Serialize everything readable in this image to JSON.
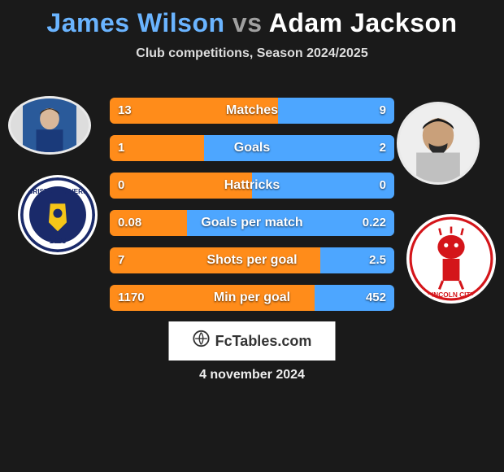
{
  "title": {
    "player1": "James Wilson",
    "vs": "vs",
    "player2": "Adam Jackson"
  },
  "subtitle": "Club competitions, Season 2024/2025",
  "colors": {
    "bar_left": "#ff8c1a",
    "bar_right": "#4da6ff",
    "bar_bg": "#4a4a4a",
    "player1_title": "#6ab4ff",
    "vs_title": "#a0a0a0",
    "player2_title": "#ffffff",
    "background": "#1a1a1a"
  },
  "stats": [
    {
      "label": "Matches",
      "left_val": "13",
      "right_val": "9",
      "left_pct": 59,
      "right_pct": 41
    },
    {
      "label": "Goals",
      "left_val": "1",
      "right_val": "2",
      "left_pct": 33,
      "right_pct": 67
    },
    {
      "label": "Hattricks",
      "left_val": "0",
      "right_val": "0",
      "left_pct": 50,
      "right_pct": 50
    },
    {
      "label": "Goals per match",
      "left_val": "0.08",
      "right_val": "0.22",
      "left_pct": 27,
      "right_pct": 73
    },
    {
      "label": "Shots per goal",
      "left_val": "7",
      "right_val": "2.5",
      "left_pct": 74,
      "right_pct": 26
    },
    {
      "label": "Min per goal",
      "left_val": "1170",
      "right_val": "452",
      "left_pct": 72,
      "right_pct": 28
    }
  ],
  "branding": {
    "text": "FcTables.com"
  },
  "date": "4 november 2024",
  "avatars": {
    "player1_name": "James Wilson",
    "player2_name": "Adam Jackson",
    "club1_name": "Bristol Rovers",
    "club2_name": "Lincoln City"
  }
}
